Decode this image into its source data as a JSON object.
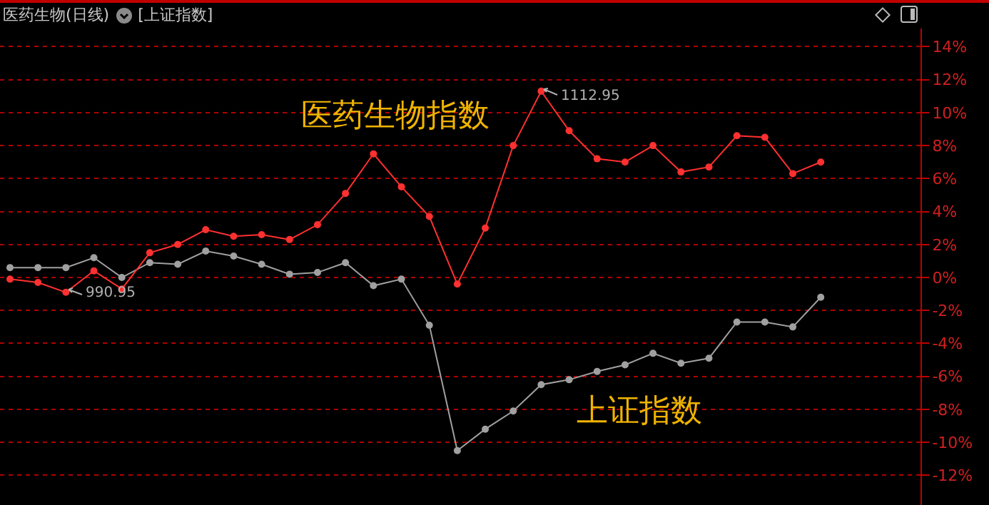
{
  "chart_data": {
    "type": "line",
    "title": "医药生物(日线)",
    "subtitle": "[上证指数]",
    "categories": [
      null,
      null,
      null,
      null,
      null,
      null,
      null,
      null,
      null,
      null,
      null,
      null,
      null,
      null,
      null,
      null,
      null,
      null,
      null,
      null,
      null,
      null,
      null,
      null,
      null,
      null,
      null,
      null,
      null,
      null
    ],
    "series": [
      {
        "name": "医药生物指数",
        "color": "#ff3030",
        "values": [
          -0.1,
          -0.3,
          -0.9,
          0.4,
          -0.7,
          1.5,
          2.0,
          2.9,
          2.5,
          2.6,
          2.3,
          3.2,
          5.1,
          7.5,
          5.5,
          3.7,
          -0.4,
          3.0,
          8.0,
          11.3,
          8.9,
          7.2,
          7.0,
          8.0,
          6.4,
          6.7,
          8.6,
          8.5,
          6.3,
          7.0
        ]
      },
      {
        "name": "上证指数",
        "color": "#a0a0a0",
        "values": [
          0.6,
          0.6,
          0.6,
          1.2,
          0.0,
          0.9,
          0.8,
          1.6,
          1.3,
          0.8,
          0.2,
          0.3,
          0.9,
          -0.5,
          -0.1,
          -2.9,
          -10.5,
          -9.2,
          -8.1,
          -6.5,
          -6.2,
          -5.7,
          -5.3,
          -4.6,
          -5.2,
          -4.9,
          -2.7,
          -2.7,
          -3.0,
          -1.2
        ]
      }
    ],
    "annotations": [
      "990.95",
      "1112.95"
    ],
    "ylim": [
      -13.8,
      15.1
    ],
    "yticks": [
      {
        "value": -12,
        "label": "-12%"
      },
      {
        "value": -10,
        "label": "-10%"
      },
      {
        "value": -8,
        "label": "-8%"
      },
      {
        "value": -6,
        "label": "-6%"
      },
      {
        "value": -4,
        "label": "-4%"
      },
      {
        "value": -2,
        "label": "-2%"
      },
      {
        "value": 0,
        "label": "0%"
      },
      {
        "value": 2,
        "label": "2%"
      },
      {
        "value": 4,
        "label": "4%"
      },
      {
        "value": 6,
        "label": "6%"
      },
      {
        "value": 8,
        "label": "8%"
      },
      {
        "value": 10,
        "label": "10%"
      },
      {
        "value": 12,
        "label": "12%"
      },
      {
        "value": 14,
        "label": "14%"
      }
    ],
    "grid": "y",
    "legend": false,
    "marker": "circle",
    "line_style": "solid",
    "tick_labels": "y"
  }
}
